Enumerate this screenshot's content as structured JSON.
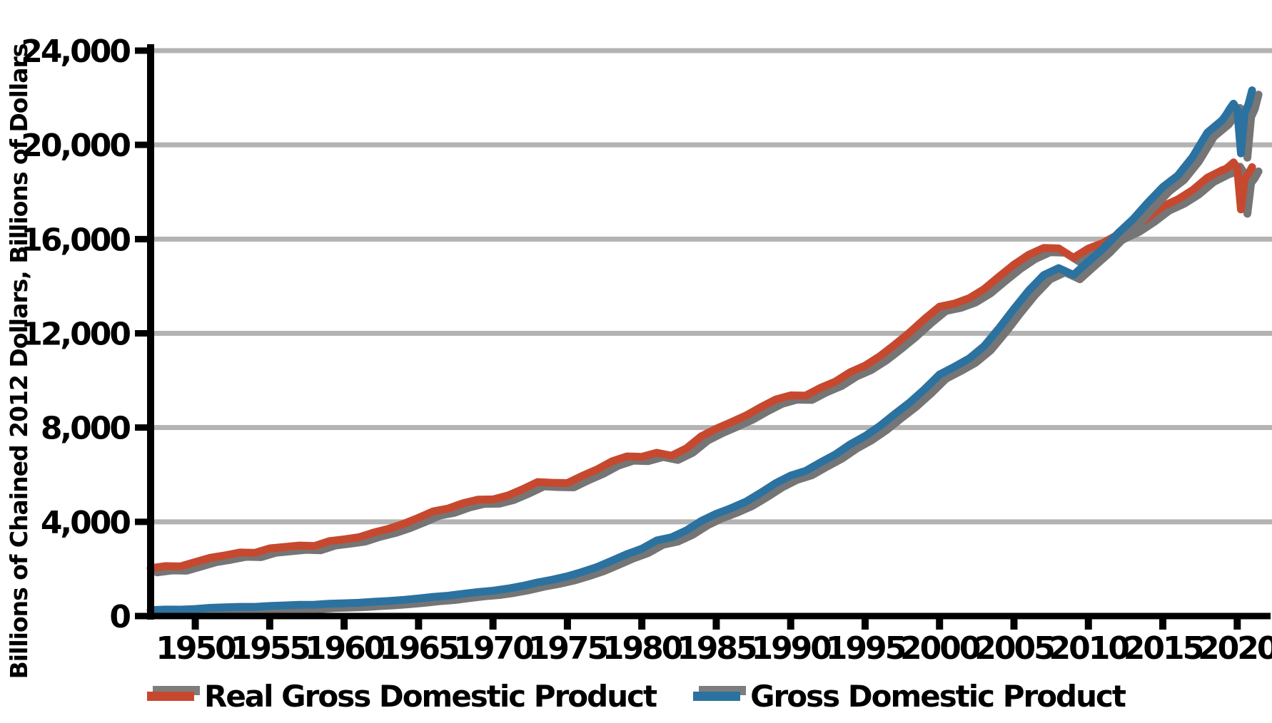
{
  "page": {
    "background": "#ffffff"
  },
  "chart_data": {
    "type": "line",
    "title": "",
    "xlabel": "",
    "ylabel": "Billions of Chained 2012 Dollars, Billions of Dollars",
    "xlim": [
      1947,
      2022
    ],
    "ylim": [
      0,
      24000
    ],
    "y_tick_step": 4000,
    "y_tick_labels": [
      "0",
      "4,000",
      "8,000",
      "12,000",
      "16,000",
      "20,000",
      "24,000"
    ],
    "x_tick_labels": [
      "1950",
      "1955",
      "1960",
      "1965",
      "1970",
      "1975",
      "1980",
      "1985",
      "1990",
      "1995",
      "2000",
      "2005",
      "2010",
      "2015",
      "2020"
    ],
    "grid": "horizontal",
    "legend_position": "bottom-center",
    "colors": {
      "real_gdp_line": "#c6492f",
      "gdp_line": "#2b72a0",
      "gridline": "#b3b3b3",
      "line_shadow": "#757575",
      "axis": "#000000",
      "text": "#000000"
    },
    "x": [
      1947,
      1948,
      1949,
      1950,
      1951,
      1952,
      1953,
      1954,
      1955,
      1956,
      1957,
      1958,
      1959,
      1960,
      1961,
      1962,
      1963,
      1964,
      1965,
      1966,
      1967,
      1968,
      1969,
      1970,
      1971,
      1972,
      1973,
      1974,
      1975,
      1976,
      1977,
      1978,
      1979,
      1980,
      1981,
      1982,
      1983,
      1984,
      1985,
      1986,
      1987,
      1988,
      1989,
      1990,
      1991,
      1992,
      1993,
      1994,
      1995,
      1996,
      1997,
      1998,
      1999,
      2000,
      2001,
      2002,
      2003,
      2004,
      2005,
      2006,
      2007,
      2008,
      2009,
      2010,
      2011,
      2012,
      2013,
      2014,
      2015,
      2016,
      2017,
      2018,
      2019,
      2019.25,
      2019.5,
      2019.75,
      2020,
      2020.25,
      2020.5,
      2020.75,
      2021
    ],
    "series": [
      {
        "name": "Real Gross Domestic Product",
        "color": "#c6492f",
        "units": "Billions of Chained 2012 Dollars",
        "values": [
          2034,
          2119,
          2106,
          2290,
          2474,
          2575,
          2696,
          2680,
          2871,
          2932,
          2994,
          2972,
          3178,
          3258,
          3343,
          3548,
          3703,
          3916,
          4171,
          4446,
          4568,
          4792,
          4942,
          4951,
          5114,
          5383,
          5687,
          5656,
          5645,
          5949,
          6224,
          6568,
          6776,
          6759,
          6931,
          6806,
          7118,
          7633,
          7951,
          8226,
          8511,
          8867,
          9192,
          9366,
          9355,
          9685,
          9952,
          10352,
          10630,
          11031,
          11522,
          12038,
          12611,
          13131,
          13262,
          13493,
          13879,
          14406,
          14913,
          15338,
          15626,
          15605,
          15209,
          15599,
          15841,
          16197,
          16495,
          16912,
          17390,
          17680,
          18077,
          18609,
          18927,
          18983,
          19112,
          19254,
          19011,
          17258,
          18561,
          18767,
          19056
        ]
      },
      {
        "name": "Gross Domestic Product",
        "color": "#2b72a0",
        "units": "Billions of Dollars",
        "values": [
          250,
          275,
          272,
          300,
          347,
          368,
          390,
          391,
          426,
          450,
          474,
          482,
          522,
          543,
          563,
          605,
          639,
          686,
          744,
          815,
          862,
          943,
          1020,
          1073,
          1165,
          1279,
          1425,
          1545,
          1685,
          1873,
          2082,
          2352,
          2627,
          2857,
          3207,
          3344,
          3634,
          4038,
          4339,
          4580,
          4855,
          5236,
          5642,
          5963,
          6158,
          6520,
          6859,
          7287,
          7640,
          8073,
          8578,
          9063,
          9631,
          10252,
          10582,
          10936,
          11458,
          12214,
          13039,
          13816,
          14474,
          14770,
          14478,
          15049,
          15600,
          16254,
          16843,
          17551,
          18206,
          18695,
          19480,
          20527,
          21050,
          21272,
          21531,
          21747,
          21481,
          19636,
          21362,
          21705,
          22313
        ]
      }
    ]
  }
}
